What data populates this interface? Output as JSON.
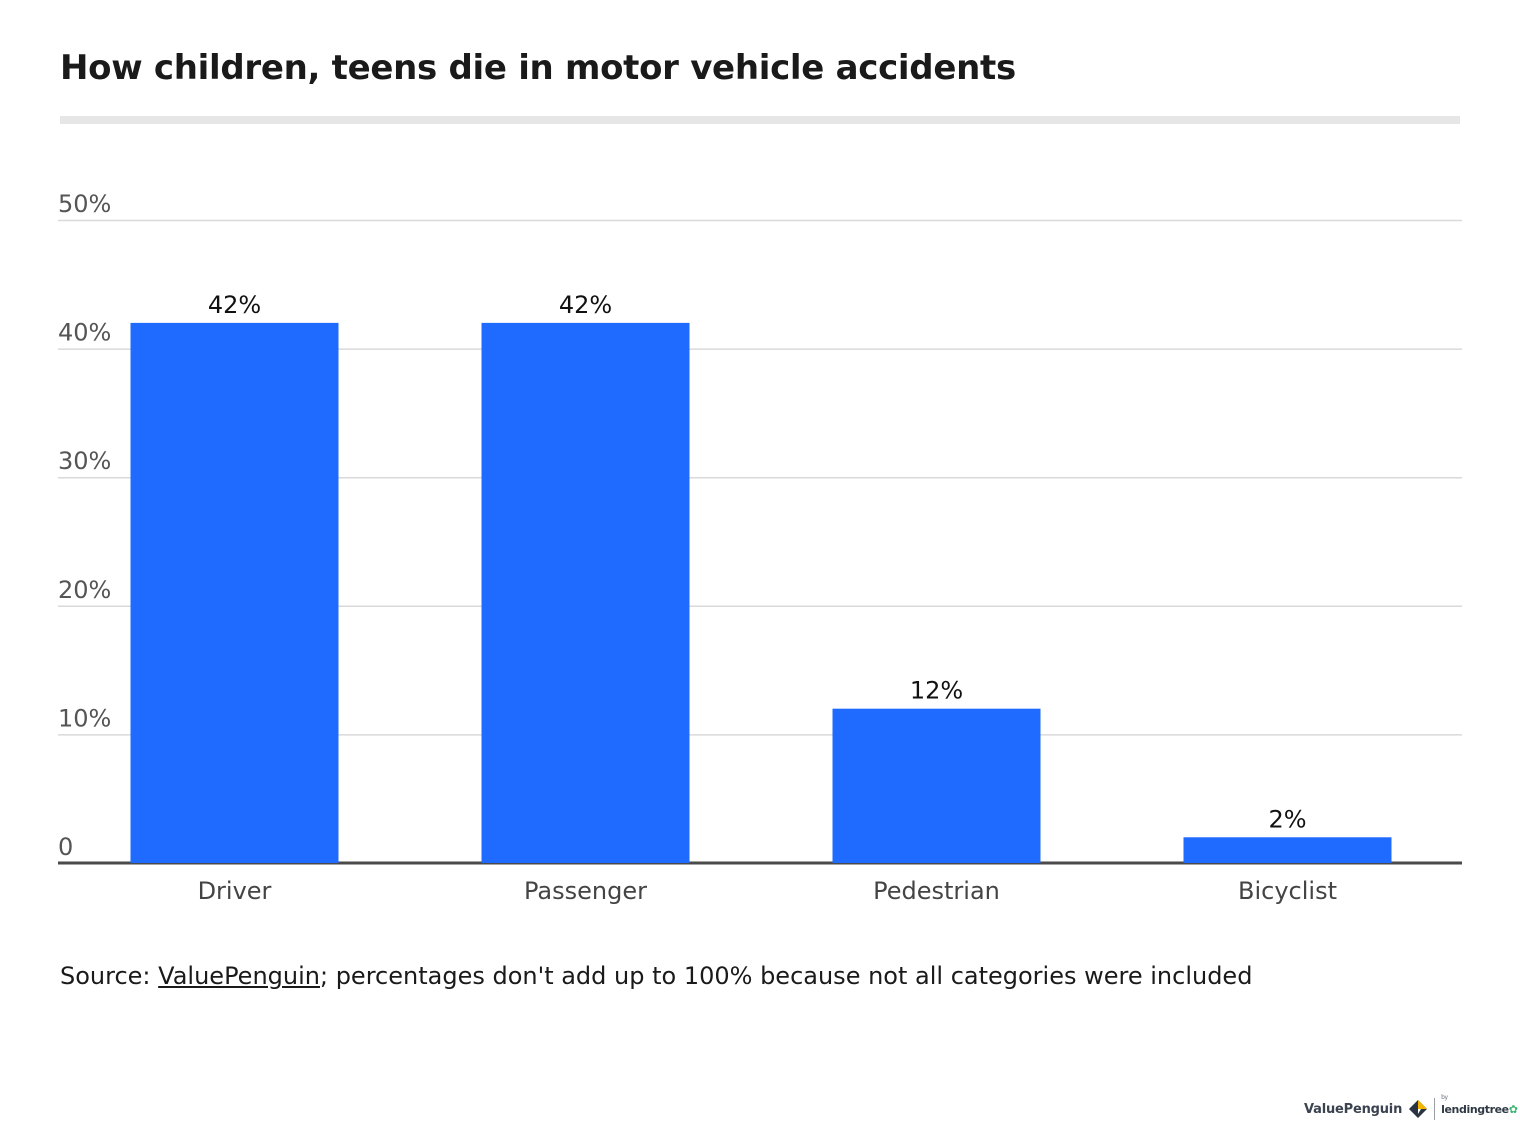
{
  "title": "How children, teens die in motor vehicle accidents",
  "source": {
    "prefix": "Source: ",
    "link_text": "ValuePenguin",
    "suffix": "; percentages don't add up to 100% because not all categories were included"
  },
  "footer": {
    "brand": "ValuePenguin",
    "by": "by",
    "partner": "lendingtree",
    "brand_icon": "penguin-diamond-icon",
    "partner_icon": "leaf-icon"
  },
  "colors": {
    "bar": "#1f6bff",
    "grid": "#d9d9d9",
    "axis": "#4a4a4a",
    "tick_label": "#555555",
    "category_label": "#444444",
    "data_label": "#111111"
  },
  "chart_data": {
    "type": "bar",
    "categories": [
      "Driver",
      "Passenger",
      "Pedestrian",
      "Bicyclist"
    ],
    "values": [
      42,
      42,
      12,
      2
    ],
    "data_labels": [
      "42%",
      "42%",
      "12%",
      "2%"
    ],
    "y_ticks": [
      0,
      10,
      20,
      30,
      40,
      50
    ],
    "y_tick_labels": [
      "0",
      "10%",
      "20%",
      "30%",
      "40%",
      "50%"
    ],
    "ylim": [
      0,
      50
    ],
    "xlabel": "",
    "ylabel": "",
    "grid": true,
    "legend": "none"
  }
}
